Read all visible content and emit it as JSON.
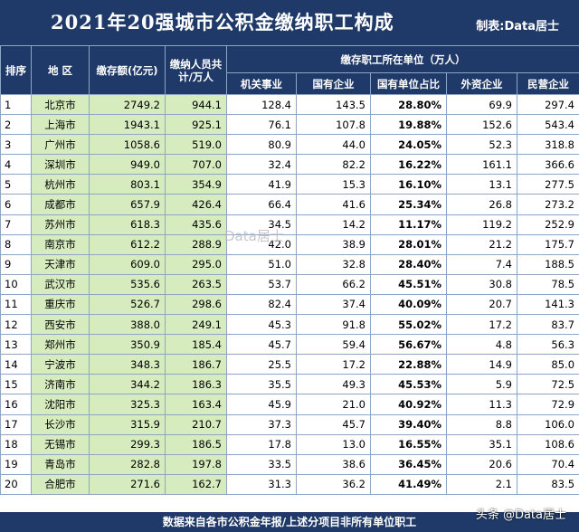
{
  "header": {
    "title": "2021年20强城市公积金缴纳职工构成",
    "credit": "制表:Data居士"
  },
  "columns": {
    "rank": "排序",
    "city": "地 区",
    "amount": "缴存额(亿元)",
    "people": "缴纳人员共计/万人",
    "group": "缴存职工所在单位（万人）",
    "jiguan": "机关事业",
    "guoyou": "国有企业",
    "ratio": "国有单位占比",
    "waizi": "外资企业",
    "minying": "民营企业"
  },
  "rows": [
    {
      "rank": "1",
      "city": "北京市",
      "amount": "2749.2",
      "people": "944.1",
      "jiguan": "128.4",
      "guoyou": "143.5",
      "ratio": "28.80%",
      "waizi": "69.9",
      "minying": "297.4"
    },
    {
      "rank": "2",
      "city": "上海市",
      "amount": "1943.1",
      "people": "925.1",
      "jiguan": "76.1",
      "guoyou": "107.8",
      "ratio": "19.88%",
      "waizi": "152.6",
      "minying": "543.4"
    },
    {
      "rank": "3",
      "city": "广州市",
      "amount": "1058.6",
      "people": "519.0",
      "jiguan": "80.9",
      "guoyou": "44.0",
      "ratio": "24.05%",
      "waizi": "52.3",
      "minying": "318.8"
    },
    {
      "rank": "4",
      "city": "深圳市",
      "amount": "949.0",
      "people": "707.0",
      "jiguan": "32.4",
      "guoyou": "82.2",
      "ratio": "16.22%",
      "waizi": "161.1",
      "minying": "366.6"
    },
    {
      "rank": "5",
      "city": "杭州市",
      "amount": "803.1",
      "people": "354.9",
      "jiguan": "41.9",
      "guoyou": "15.3",
      "ratio": "16.10%",
      "waizi": "13.1",
      "minying": "277.5"
    },
    {
      "rank": "6",
      "city": "成都市",
      "amount": "657.9",
      "people": "426.4",
      "jiguan": "66.4",
      "guoyou": "41.6",
      "ratio": "25.34%",
      "waizi": "26.8",
      "minying": "273.2"
    },
    {
      "rank": "7",
      "city": "苏州市",
      "amount": "618.3",
      "people": "435.6",
      "jiguan": "34.5",
      "guoyou": "14.2",
      "ratio": "11.17%",
      "waizi": "119.2",
      "minying": "252.9"
    },
    {
      "rank": "8",
      "city": "南京市",
      "amount": "612.2",
      "people": "288.9",
      "jiguan": "42.0",
      "guoyou": "38.9",
      "ratio": "28.01%",
      "waizi": "21.2",
      "minying": "175.7"
    },
    {
      "rank": "9",
      "city": "天津市",
      "amount": "609.0",
      "people": "295.0",
      "jiguan": "51.0",
      "guoyou": "32.8",
      "ratio": "28.40%",
      "waizi": "7.4",
      "minying": "188.5"
    },
    {
      "rank": "10",
      "city": "武汉市",
      "amount": "535.6",
      "people": "263.5",
      "jiguan": "53.7",
      "guoyou": "66.2",
      "ratio": "45.51%",
      "waizi": "30.8",
      "minying": "78.5"
    },
    {
      "rank": "11",
      "city": "重庆市",
      "amount": "526.7",
      "people": "298.6",
      "jiguan": "82.4",
      "guoyou": "37.4",
      "ratio": "40.09%",
      "waizi": "20.7",
      "minying": "141.3"
    },
    {
      "rank": "12",
      "city": "西安市",
      "amount": "388.0",
      "people": "249.1",
      "jiguan": "45.3",
      "guoyou": "91.8",
      "ratio": "55.02%",
      "waizi": "17.2",
      "minying": "83.7"
    },
    {
      "rank": "13",
      "city": "郑州市",
      "amount": "350.9",
      "people": "185.4",
      "jiguan": "45.7",
      "guoyou": "59.4",
      "ratio": "56.67%",
      "waizi": "4.8",
      "minying": "56.3"
    },
    {
      "rank": "14",
      "city": "宁波市",
      "amount": "348.3",
      "people": "186.7",
      "jiguan": "25.5",
      "guoyou": "17.2",
      "ratio": "22.88%",
      "waizi": "14.9",
      "minying": "85.0"
    },
    {
      "rank": "15",
      "city": "济南市",
      "amount": "344.2",
      "people": "186.3",
      "jiguan": "35.5",
      "guoyou": "49.3",
      "ratio": "45.53%",
      "waizi": "5.9",
      "minying": "72.5"
    },
    {
      "rank": "16",
      "city": "沈阳市",
      "amount": "325.3",
      "people": "163.4",
      "jiguan": "45.9",
      "guoyou": "21.0",
      "ratio": "40.92%",
      "waizi": "11.3",
      "minying": "72.9"
    },
    {
      "rank": "17",
      "city": "长沙市",
      "amount": "315.9",
      "people": "210.7",
      "jiguan": "37.3",
      "guoyou": "45.7",
      "ratio": "39.40%",
      "waizi": "8.8",
      "minying": "106.0"
    },
    {
      "rank": "18",
      "city": "无锡市",
      "amount": "299.3",
      "people": "186.5",
      "jiguan": "17.8",
      "guoyou": "13.0",
      "ratio": "16.55%",
      "waizi": "35.1",
      "minying": "108.6"
    },
    {
      "rank": "19",
      "city": "青岛市",
      "amount": "282.8",
      "people": "197.8",
      "jiguan": "33.5",
      "guoyou": "38.6",
      "ratio": "36.45%",
      "waizi": "20.6",
      "minying": "70.4"
    },
    {
      "rank": "20",
      "city": "合肥市",
      "amount": "271.6",
      "people": "162.7",
      "jiguan": "31.3",
      "guoyou": "36.2",
      "ratio": "41.49%",
      "waizi": "2.1",
      "minying": "83.5"
    }
  ],
  "footer": "数据来自各市公积金年报/上述分项目非所有单位职工",
  "watermarks": {
    "center": "Data居士",
    "corner": "头条 @Data居士"
  },
  "colors": {
    "header_bg": "#1f3a68",
    "highlight_bg": "#d6ecbf"
  }
}
